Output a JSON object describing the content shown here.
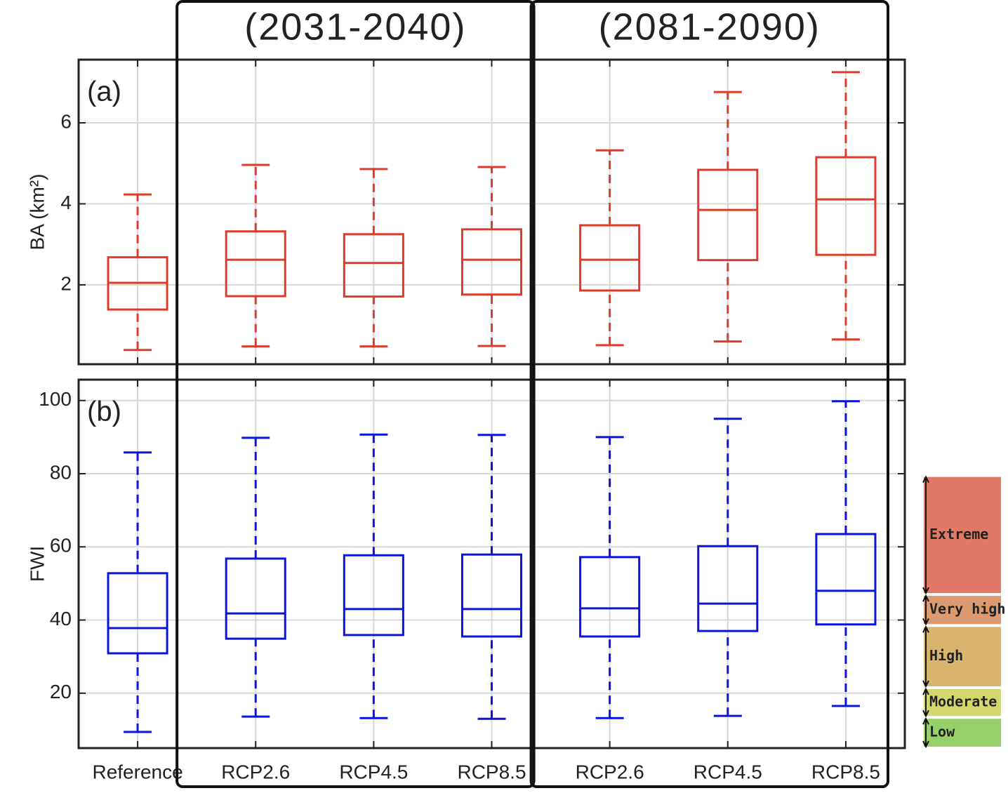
{
  "chart_data": [
    {
      "type": "box",
      "label": "(a)",
      "y_label": "BA (km²)",
      "color": "#e03a2a",
      "ylim": [
        0.04,
        7.56
      ],
      "yticks": [
        2,
        4,
        6
      ],
      "grid": true,
      "boxes": [
        {
          "whislo": 0.39,
          "q1": 1.39,
          "med": 2.05,
          "q3": 2.68,
          "whishi": 4.23
        },
        {
          "whislo": 0.48,
          "q1": 1.72,
          "med": 2.62,
          "q3": 3.32,
          "whishi": 4.96
        },
        {
          "whislo": 0.48,
          "q1": 1.71,
          "med": 2.54,
          "q3": 3.25,
          "whishi": 4.86
        },
        {
          "whislo": 0.49,
          "q1": 1.76,
          "med": 2.62,
          "q3": 3.37,
          "whishi": 4.91
        },
        {
          "whislo": 0.51,
          "q1": 1.86,
          "med": 2.62,
          "q3": 3.47,
          "whishi": 5.32
        },
        {
          "whislo": 0.6,
          "q1": 2.61,
          "med": 3.85,
          "q3": 4.84,
          "whishi": 6.76
        },
        {
          "whislo": 0.65,
          "q1": 2.74,
          "med": 4.11,
          "q3": 5.15,
          "whishi": 7.25
        }
      ]
    },
    {
      "type": "box",
      "label": "(b)",
      "y_label": "FWI",
      "color": "#0a14e0",
      "categories": [
        "Reference",
        "RCP2.6",
        "RCP4.5",
        "RCP8.5",
        "RCP2.6",
        "RCP4.5",
        "RCP8.5"
      ],
      "ylim": [
        5,
        105.7
      ],
      "yticks": [
        20,
        40,
        60,
        80,
        100
      ],
      "grid": true,
      "boxes": [
        {
          "whislo": 9.4,
          "q1": 30.9,
          "med": 37.8,
          "q3": 52.8,
          "whishi": 85.8
        },
        {
          "whislo": 13.6,
          "q1": 34.9,
          "med": 41.8,
          "q3": 56.8,
          "whishi": 89.8
        },
        {
          "whislo": 13.2,
          "q1": 35.9,
          "med": 43.0,
          "q3": 57.7,
          "whishi": 90.7
        },
        {
          "whislo": 13.0,
          "q1": 35.5,
          "med": 43.0,
          "q3": 57.9,
          "whishi": 90.6
        },
        {
          "whislo": 13.2,
          "q1": 35.5,
          "med": 43.2,
          "q3": 57.2,
          "whishi": 90.0
        },
        {
          "whislo": 13.8,
          "q1": 37.0,
          "med": 44.5,
          "q3": 60.2,
          "whishi": 95.0
        },
        {
          "whislo": 16.5,
          "q1": 38.8,
          "med": 48.0,
          "q3": 63.5,
          "whishi": 99.8
        }
      ],
      "classes": [
        {
          "name": "Extreme",
          "color": "#e07a66",
          "range": [
            47,
            79.5
          ]
        },
        {
          "name": "Very high",
          "color": "#dd9a70",
          "range": [
            38.5,
            47
          ]
        },
        {
          "name": "High",
          "color": "#d9b46c",
          "range": [
            21.5,
            38.5
          ]
        },
        {
          "name": "Moderate",
          "color": "#d4d86c",
          "range": [
            13.4,
            21.5
          ]
        },
        {
          "name": "Low",
          "color": "#96d068",
          "range": [
            5,
            13.4
          ]
        }
      ]
    }
  ],
  "groups": [
    {
      "label": "(2031-2040)"
    },
    {
      "label": "(2081-2090)"
    }
  ]
}
